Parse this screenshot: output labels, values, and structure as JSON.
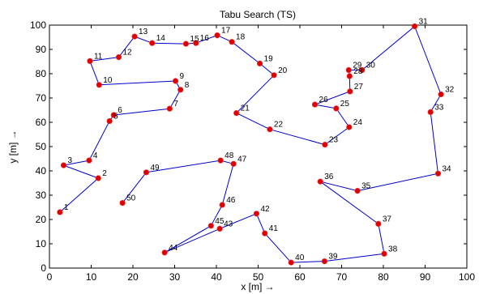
{
  "chart_data": {
    "type": "line",
    "title": "Tabu Search (TS)",
    "xlabel": "x [m] →",
    "ylabel": "y [m] →",
    "xlim": [
      0,
      100
    ],
    "ylim": [
      0,
      100
    ],
    "xticks": [
      0,
      10,
      20,
      30,
      40,
      50,
      60,
      70,
      80,
      90,
      100
    ],
    "yticks": [
      0,
      10,
      20,
      30,
      40,
      50,
      60,
      70,
      80,
      90,
      100
    ],
    "grid": false,
    "line_color": "#0000cc",
    "marker_color": "#dd0000",
    "points": [
      {
        "label": "1",
        "x": 2.5,
        "y": 23
      },
      {
        "label": "2",
        "x": 11.7,
        "y": 37
      },
      {
        "label": "3",
        "x": 3.4,
        "y": 42.3
      },
      {
        "label": "4",
        "x": 9.5,
        "y": 44.3
      },
      {
        "label": "5",
        "x": 14.4,
        "y": 60.5
      },
      {
        "label": "6",
        "x": 15.4,
        "y": 63
      },
      {
        "label": "7",
        "x": 28.8,
        "y": 65.6
      },
      {
        "label": "8",
        "x": 31.4,
        "y": 73.4
      },
      {
        "label": "9",
        "x": 30.2,
        "y": 77
      },
      {
        "label": "10",
        "x": 11.9,
        "y": 75.4
      },
      {
        "label": "11",
        "x": 9.7,
        "y": 85.2
      },
      {
        "label": "12",
        "x": 16.6,
        "y": 86.8
      },
      {
        "label": "13",
        "x": 20.4,
        "y": 95.3
      },
      {
        "label": "14",
        "x": 24.6,
        "y": 92.6
      },
      {
        "label": "15",
        "x": 32.7,
        "y": 92.3
      },
      {
        "label": "16",
        "x": 35.1,
        "y": 92.6
      },
      {
        "label": "17",
        "x": 40.2,
        "y": 95.8
      },
      {
        "label": "18",
        "x": 43.7,
        "y": 93.1
      },
      {
        "label": "19",
        "x": 50.4,
        "y": 84.2
      },
      {
        "label": "20",
        "x": 53.8,
        "y": 79.4
      },
      {
        "label": "21",
        "x": 44.8,
        "y": 63.8
      },
      {
        "label": "22",
        "x": 52.8,
        "y": 57.1
      },
      {
        "label": "23",
        "x": 66,
        "y": 50.8
      },
      {
        "label": "24",
        "x": 71.8,
        "y": 58
      },
      {
        "label": "25",
        "x": 68.7,
        "y": 65.7
      },
      {
        "label": "26",
        "x": 63.6,
        "y": 67.3
      },
      {
        "label": "27",
        "x": 72,
        "y": 72.7
      },
      {
        "label": "28",
        "x": 71.9,
        "y": 79
      },
      {
        "label": "29",
        "x": 71.7,
        "y": 81.5
      },
      {
        "label": "30",
        "x": 74.9,
        "y": 81.5
      },
      {
        "label": "31",
        "x": 87.5,
        "y": 99.5
      },
      {
        "label": "32",
        "x": 93.8,
        "y": 71.5
      },
      {
        "label": "33",
        "x": 91.3,
        "y": 64.2
      },
      {
        "label": "34",
        "x": 93.1,
        "y": 38.9
      },
      {
        "label": "35",
        "x": 73.8,
        "y": 31.8
      },
      {
        "label": "36",
        "x": 64.9,
        "y": 35.6
      },
      {
        "label": "37",
        "x": 78.8,
        "y": 18.2
      },
      {
        "label": "38",
        "x": 80.2,
        "y": 5.9
      },
      {
        "label": "39",
        "x": 65.9,
        "y": 2.8
      },
      {
        "label": "40",
        "x": 57.9,
        "y": 2.3
      },
      {
        "label": "41",
        "x": 51.6,
        "y": 14.3
      },
      {
        "label": "42",
        "x": 49.6,
        "y": 22.4
      },
      {
        "label": "43",
        "x": 40.8,
        "y": 16.2
      },
      {
        "label": "44",
        "x": 27.6,
        "y": 6.4
      },
      {
        "label": "45",
        "x": 38.7,
        "y": 17.4
      },
      {
        "label": "46",
        "x": 41.4,
        "y": 26
      },
      {
        "label": "47",
        "x": 44.1,
        "y": 42.9
      },
      {
        "label": "48",
        "x": 41,
        "y": 44.3
      },
      {
        "label": "49",
        "x": 23.2,
        "y": 39.4
      },
      {
        "label": "50",
        "x": 17.5,
        "y": 26.8
      }
    ],
    "tour": [
      "1",
      "2",
      "3",
      "4",
      "5",
      "6",
      "7",
      "8",
      "9",
      "10",
      "11",
      "12",
      "13",
      "14",
      "15",
      "16",
      "17",
      "18",
      "19",
      "20",
      "21",
      "22",
      "23",
      "24",
      "25",
      "26",
      "27",
      "28",
      "29",
      "30",
      "31",
      "32",
      "33",
      "34",
      "35",
      "36",
      "37",
      "38",
      "39",
      "40",
      "41",
      "42",
      "43",
      "44",
      "45",
      "46",
      "47",
      "48",
      "49",
      "50"
    ]
  }
}
